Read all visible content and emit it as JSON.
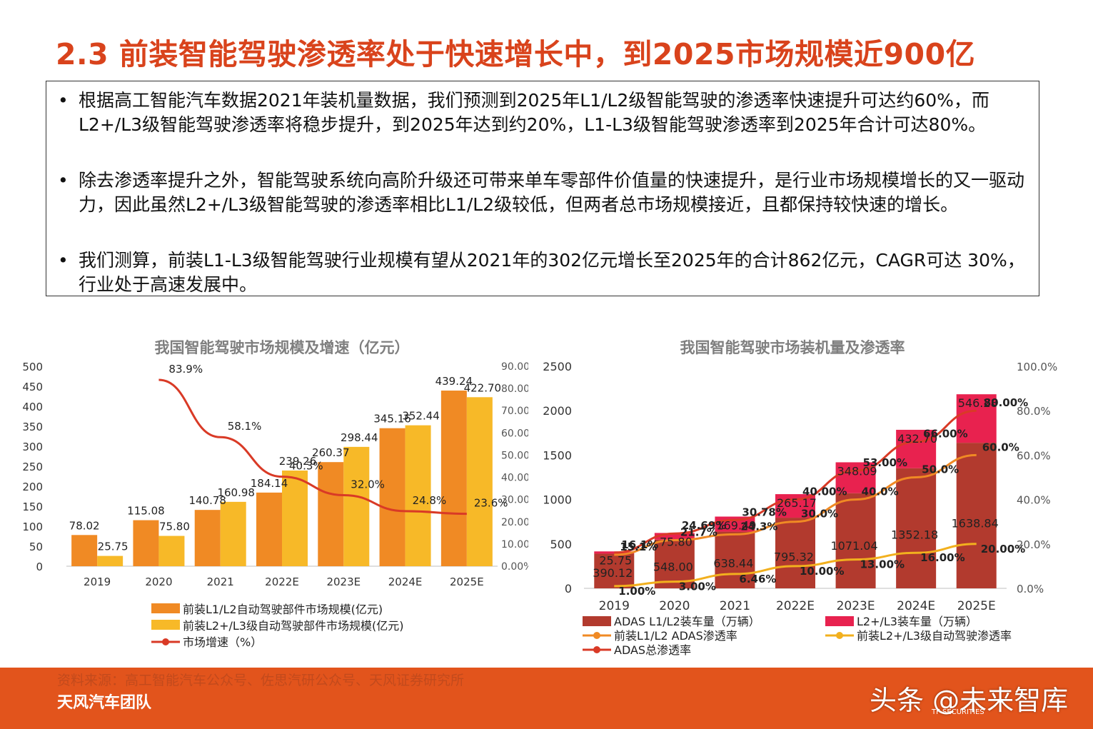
{
  "page": {
    "title": "2.3 前装智能驾驶渗透率处于快速增长中，到2025市场规模近900亿",
    "bullets": [
      "根据高工智能汽车数据2021年装机量数据，我们预测到2025年L1/L2级智能驾驶的渗透率快速提升可达约60%，而L2+/L3级智能驾驶渗透率将稳步提升，到2025年达到约20%，L1-L3级智能驾驶渗透率到2025年合计可达80%。",
      "除去渗透率提升之外，智能驾驶系统向高阶升级还可带来单车零部件价值量的快速提升，是行业市场规模增长的又一驱动力，因此虽然L2+/L3级智能驾驶的渗透率相比L1/L2级较低，但两者总市场规模接近，且都保持较快速的增长。",
      "我们测算，前装L1-L3级智能驾驶行业规模有望从2021年的302亿元增长至2025年的合计862亿元，CAGR可达 30%，行业处于高速发展中。"
    ],
    "bullet_glyph": "•",
    "source": "资料来源：高工智能汽车公众号、佐思汽研公众号、天风证券研究所",
    "team": "天风汽车团队",
    "watermark": "头条 @未来智库",
    "brand": "TF SECURITIES"
  },
  "chart_data": [
    {
      "type": "bar",
      "title": "我国智能驾驶市场规模及增速（亿元）",
      "categories": [
        "2019",
        "2020",
        "2021",
        "2022E",
        "2023E",
        "2024E",
        "2025E"
      ],
      "ylim": [
        0,
        500
      ],
      "yticks": [
        "0",
        "50",
        "100",
        "150",
        "200",
        "250",
        "300",
        "350",
        "400",
        "450",
        "500"
      ],
      "y2lim": [
        0,
        90
      ],
      "y2ticks": [
        "0.00%",
        "10.00%",
        "20.00%",
        "30.00%",
        "40.00%",
        "50.00%",
        "60.00%",
        "70.00%",
        "80.00%",
        "90.00%"
      ],
      "series": [
        {
          "name": "前装L1/L2自动驾驶部件市场规模(亿元)",
          "kind": "bar",
          "color": "#f08a24",
          "values": [
            78.02,
            115.08,
            140.78,
            184.14,
            260.37,
            345.16,
            439.24
          ],
          "labels": [
            "78.02",
            "115.08",
            "140.78",
            "184.14",
            "260.37",
            "345.16",
            "439.24"
          ]
        },
        {
          "name": "前装L2+/L3级自动驾驶部件市场规模(亿元)",
          "kind": "bar",
          "color": "#f7b928",
          "values": [
            25.75,
            75.8,
            160.98,
            239.26,
            298.44,
            352.44,
            422.7
          ],
          "labels": [
            "25.75",
            "75.80",
            "160.98",
            "239.26",
            "298.44",
            "352.44",
            "422.70"
          ]
        },
        {
          "name": "市场增速（%）",
          "kind": "line",
          "color": "#d93a26",
          "x": [
            "2020",
            "2021",
            "2022E",
            "2023E",
            "2024E",
            "2025E"
          ],
          "values": [
            83.9,
            58.1,
            40.3,
            32.0,
            24.8,
            23.6
          ],
          "labels": [
            "83.9%",
            "58.1%",
            "40.3%",
            "32.0%",
            "24.8%",
            "23.6%"
          ]
        }
      ]
    },
    {
      "type": "bar",
      "title": "我国智能驾驶市场装机量及渗透率",
      "categories": [
        "2019",
        "2020",
        "2021",
        "2022E",
        "2023E",
        "2024E",
        "2025E"
      ],
      "stacked": true,
      "ylim": [
        0,
        2500
      ],
      "yticks": [
        "0",
        "500",
        "1000",
        "1500",
        "2000",
        "2500"
      ],
      "y2lim": [
        0,
        100
      ],
      "y2ticks": [
        "0.0%",
        "20.0%",
        "40.0%",
        "60.0%",
        "80.0%",
        "100.0%"
      ],
      "series": [
        {
          "name": "ADAS L1/L2装车量（万辆）",
          "kind": "bar",
          "color": "#b23a2e",
          "values": [
            390.12,
            548.0,
            638.44,
            795.32,
            1071.04,
            1352.18,
            1638.84
          ],
          "labels": [
            "390.12",
            "548.00",
            "638.44",
            "795.32",
            "1071.04",
            "1352.18",
            "1638.84"
          ]
        },
        {
          "name": "L2+/L3装车量（万辆）",
          "kind": "bar",
          "color": "#e8224f",
          "values": [
            25.75,
            75.8,
            169.49,
            265.17,
            348.09,
            432.7,
            546.28
          ],
          "labels": [
            "25.75",
            "75.80",
            "169.49",
            "265.17",
            "348.09",
            "432.70",
            "546.28"
          ]
        },
        {
          "name": "前装L1/L2 ADAS渗透率",
          "kind": "line",
          "color": "#f08a24",
          "values": [
            15.1,
            21.7,
            24.3,
            30.0,
            40.0,
            50.0,
            60.0
          ],
          "labels": [
            "15.1%",
            "21.7%",
            "24.3%",
            "30.0%",
            "40.0%",
            "50.0%",
            "60.0%"
          ]
        },
        {
          "name": "前装L2+/L3级自动驾驶渗透率",
          "kind": "line",
          "color": "#f2b01e",
          "values": [
            1.0,
            3.0,
            6.46,
            10.0,
            13.0,
            16.0,
            20.0
          ],
          "labels": [
            "1.00%",
            "3.00%",
            "6.46%",
            "10.00%",
            "13.00%",
            "16.00%",
            "20.00%"
          ]
        },
        {
          "name": "ADAS总渗透率",
          "kind": "line",
          "color": "#d93a26",
          "values": [
            16.1,
            24.69,
            30.78,
            40.0,
            53.0,
            66.0,
            80.0
          ],
          "labels": [
            "16.1%",
            "24.69%",
            "30.78%",
            "40.00%",
            "53.00%",
            "66.00%",
            "80.00%"
          ]
        }
      ]
    }
  ]
}
